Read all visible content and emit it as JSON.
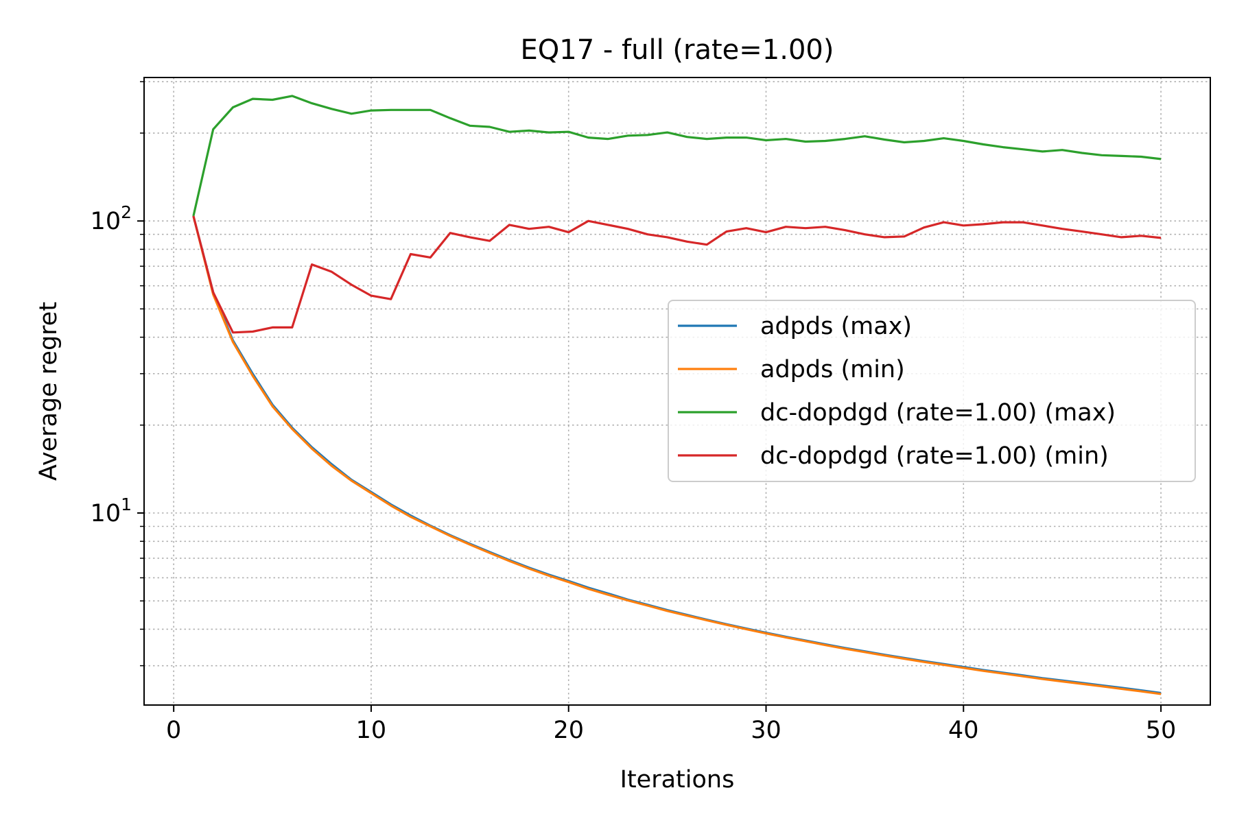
{
  "chart_data": {
    "type": "line",
    "title": "EQ17 - full (rate=1.00)",
    "xlabel": "Iterations",
    "ylabel": "Average regret",
    "xlim": [
      -1.5,
      52.5
    ],
    "ylim": [
      2.2,
      310
    ],
    "yscale": "log",
    "grid": true,
    "legend_position": "center-right",
    "x_ticks": [
      0,
      10,
      20,
      30,
      40,
      50
    ],
    "x_tick_labels": [
      "0",
      "10",
      "20",
      "30",
      "40",
      "50"
    ],
    "y_major_ticks": [
      10,
      100
    ],
    "y_tick_labels": [
      {
        "base": "10",
        "exp": "1"
      },
      {
        "base": "10",
        "exp": "2"
      }
    ],
    "y_minor_ticks": [
      3,
      4,
      5,
      6,
      7,
      8,
      9,
      20,
      30,
      40,
      50,
      60,
      70,
      80,
      90,
      200,
      300
    ],
    "x": [
      1,
      2,
      3,
      4,
      5,
      6,
      7,
      8,
      9,
      10,
      11,
      12,
      13,
      14,
      15,
      16,
      17,
      18,
      19,
      20,
      21,
      22,
      23,
      24,
      25,
      26,
      27,
      28,
      29,
      30,
      31,
      32,
      33,
      34,
      35,
      36,
      37,
      38,
      39,
      40,
      41,
      42,
      43,
      44,
      45,
      46,
      47,
      48,
      49,
      50
    ],
    "series": [
      {
        "name": "adpds (max)",
        "color": "#1f77b4",
        "values": [
          104,
          57,
          39,
          30,
          23.5,
          19.6,
          16.8,
          14.7,
          13,
          11.8,
          10.7,
          9.8,
          9.05,
          8.4,
          7.85,
          7.35,
          6.9,
          6.5,
          6.15,
          5.85,
          5.55,
          5.3,
          5.05,
          4.85,
          4.65,
          4.48,
          4.31,
          4.16,
          4.02,
          3.89,
          3.77,
          3.66,
          3.55,
          3.45,
          3.36,
          3.27,
          3.19,
          3.11,
          3.04,
          2.97,
          2.9,
          2.84,
          2.78,
          2.72,
          2.67,
          2.62,
          2.57,
          2.52,
          2.47,
          2.42
        ]
      },
      {
        "name": "adpds (min)",
        "color": "#ff7f0e",
        "values": [
          104,
          56,
          38.5,
          29.5,
          23.2,
          19.4,
          16.6,
          14.5,
          12.9,
          11.7,
          10.6,
          9.7,
          9,
          8.35,
          7.8,
          7.3,
          6.85,
          6.45,
          6.1,
          5.8,
          5.5,
          5.25,
          5.02,
          4.82,
          4.62,
          4.45,
          4.29,
          4.14,
          4,
          3.87,
          3.75,
          3.64,
          3.53,
          3.43,
          3.34,
          3.25,
          3.17,
          3.09,
          3.02,
          2.95,
          2.88,
          2.82,
          2.76,
          2.7,
          2.65,
          2.6,
          2.55,
          2.5,
          2.45,
          2.4
        ]
      },
      {
        "name": "dc-dopdgd (rate=1.00) (max)",
        "color": "#2ca02c",
        "values": [
          104,
          206,
          245,
          262,
          260,
          268,
          253,
          242,
          233,
          239,
          240,
          240,
          240,
          225,
          212,
          210,
          202,
          204,
          201,
          202,
          193,
          191,
          196,
          197,
          201,
          194,
          191,
          193,
          193,
          189,
          191,
          187,
          188,
          191,
          195,
          190,
          186,
          188,
          192,
          188,
          183,
          179,
          176,
          173,
          175,
          171,
          168,
          167,
          166,
          163
        ]
      },
      {
        "name": "dc-dopdgd (rate=1.00) (min)",
        "color": "#d62728",
        "values": [
          104,
          57,
          41.5,
          41.8,
          43.2,
          43.2,
          71,
          67,
          60.5,
          55.5,
          54,
          77,
          75,
          91,
          88,
          85.5,
          97,
          94,
          95.5,
          91.5,
          100,
          97,
          94,
          90,
          88,
          85,
          83,
          92,
          94.5,
          91.5,
          95.5,
          94.5,
          95.5,
          93,
          90,
          88,
          88.5,
          95,
          99,
          96.5,
          97.5,
          99,
          99,
          96.5,
          94,
          92,
          90,
          88,
          89,
          87.5
        ]
      }
    ]
  }
}
